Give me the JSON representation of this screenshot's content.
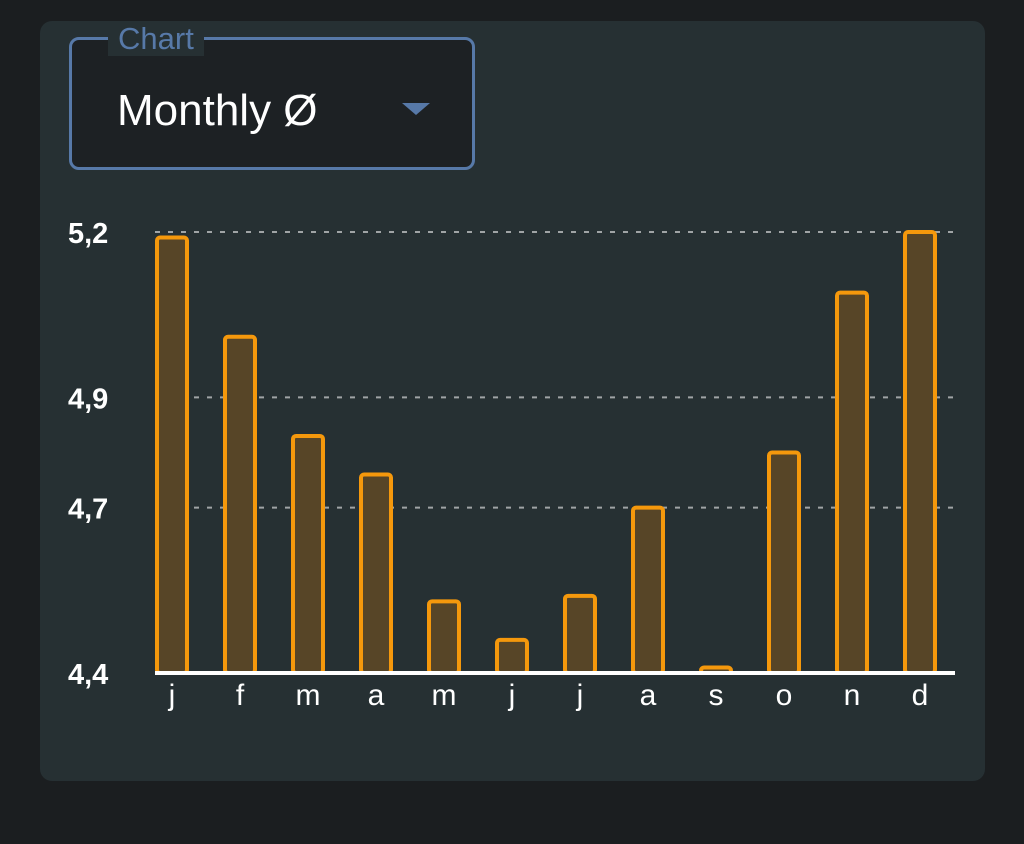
{
  "selector": {
    "label": "Chart",
    "value": "Monthly Ø",
    "icon": "chevron-down-icon"
  },
  "colors": {
    "background": "#1b1e20",
    "card": "#263033",
    "accent": "#5779a8",
    "bar_stroke": "#f5980c",
    "bar_fill": "#574527",
    "grid": "#a0a4a6",
    "axis": "#ffffff"
  },
  "chart_data": {
    "type": "bar",
    "categories": [
      "j",
      "f",
      "m",
      "a",
      "m",
      "j",
      "j",
      "a",
      "s",
      "o",
      "n",
      "d"
    ],
    "values": [
      5.19,
      5.01,
      4.83,
      4.76,
      4.53,
      4.46,
      4.54,
      4.7,
      4.41,
      4.8,
      5.09,
      5.2
    ],
    "yticks": [
      "5,2",
      "4,9",
      "4,7",
      "4,4"
    ],
    "ytick_values": [
      5.2,
      4.9,
      4.7,
      4.4
    ],
    "ylim": [
      4.4,
      5.2
    ],
    "grid": true,
    "title": "",
    "xlabel": "",
    "ylabel": ""
  }
}
